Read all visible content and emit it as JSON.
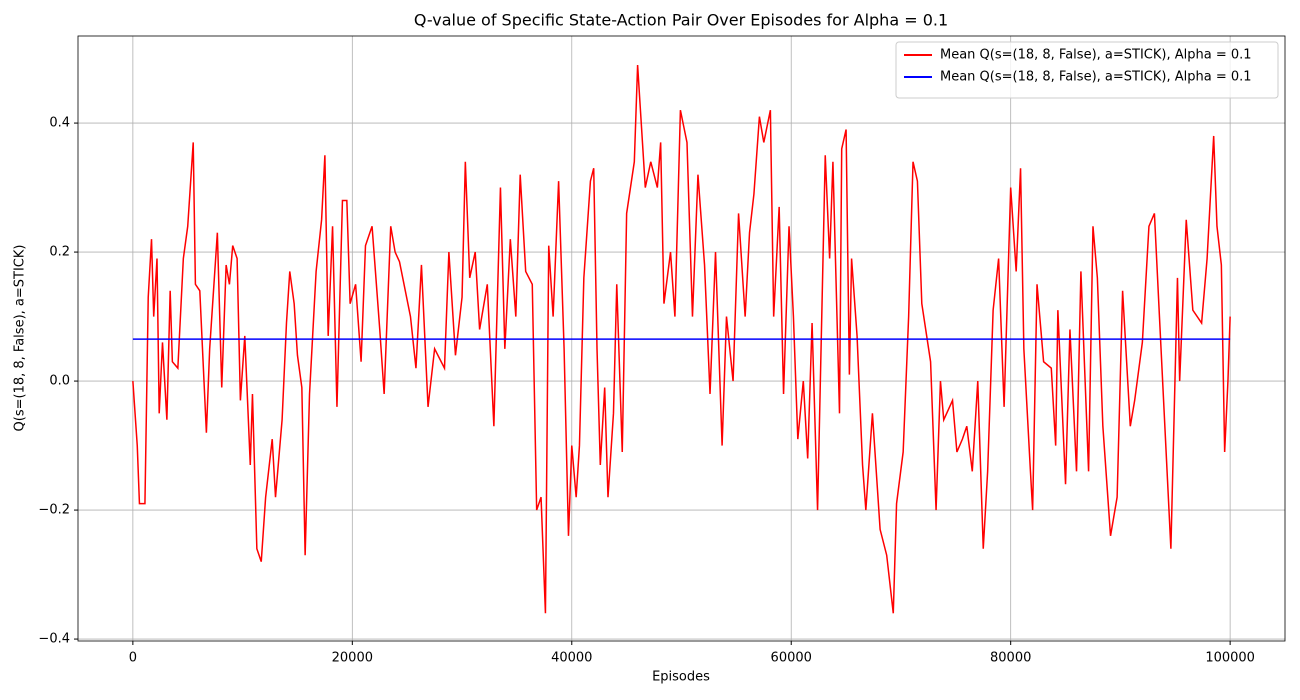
{
  "chart_data": {
    "type": "line",
    "title": "Q-value of Specific State-Action Pair Over Episodes for Alpha = 0.1",
    "x_label": "Episodes",
    "y_label": "Q(s=(18, 8, False), a=STICK)",
    "xlim": [
      -5000,
      105000
    ],
    "ylim": [
      -0.403,
      0.535
    ],
    "xticks": [
      0,
      20000,
      40000,
      60000,
      80000,
      100000
    ],
    "yticks": [
      {
        "value": -0.4,
        "label": "−0.4"
      },
      {
        "value": -0.2,
        "label": "−0.2"
      },
      {
        "value": 0,
        "label": "0.0"
      },
      0.2,
      0.4
    ],
    "grid": true,
    "legend": "upper right",
    "series": [
      {
        "name": "Mean Q(s=(18, 8, False), a=STICK), Alpha = 0.1",
        "color": "#ff0000",
        "x": [
          0,
          400,
          600,
          1100,
          1400,
          1700,
          1900,
          2200,
          2400,
          2700,
          3100,
          3400,
          3600,
          4100,
          4600,
          5000,
          5500,
          5700,
          6100,
          6400,
          6700,
          7000,
          7700,
          8100,
          8500,
          8800,
          9100,
          9500,
          9800,
          10200,
          10700,
          10900,
          11300,
          11700,
          12100,
          12700,
          13000,
          13600,
          14000,
          14300,
          14700,
          15000,
          15400,
          15700,
          16100,
          16700,
          17200,
          17500,
          17800,
          18200,
          18600,
          19100,
          19500,
          19800,
          20300,
          20800,
          21200,
          21800,
          22500,
          22900,
          23500,
          23900,
          24300,
          25300,
          25800,
          26300,
          26900,
          27500,
          28400,
          28800,
          29400,
          30000,
          30300,
          30700,
          31200,
          31600,
          32300,
          32900,
          33500,
          33900,
          34400,
          34900,
          35300,
          35800,
          36400,
          36800,
          37200,
          37600,
          37900,
          38300,
          38800,
          39300,
          39700,
          40000,
          40400,
          40700,
          41100,
          41700,
          42000,
          42300,
          42600,
          43000,
          43300,
          43800,
          44100,
          44600,
          45000,
          45700,
          46000,
          46700,
          47200,
          47800,
          48100,
          48400,
          49000,
          49400,
          49900,
          50500,
          51000,
          51500,
          52100,
          52600,
          53100,
          53700,
          54100,
          54700,
          55200,
          55800,
          56200,
          56600,
          57100,
          57500,
          58100,
          58400,
          58900,
          59300,
          59800,
          60200,
          60600,
          61100,
          61500,
          61900,
          62400,
          63100,
          63500,
          63800,
          64400,
          64600,
          65000,
          65300,
          65500,
          66000,
          66500,
          66800,
          67400,
          68100,
          68700,
          69300,
          69600,
          70200,
          70700,
          71100,
          71500,
          71900,
          72700,
          73200,
          73600,
          73900,
          74700,
          75100,
          75600,
          76000,
          76500,
          77000,
          77500,
          77900,
          78400,
          78900,
          79400,
          80000,
          80500,
          80900,
          81200,
          81800,
          82000,
          82400,
          83000,
          83700,
          84100,
          84300,
          85000,
          85400,
          86000,
          86400,
          87100,
          87500,
          87900,
          88400,
          89100,
          89700,
          90200,
          90900,
          91300,
          92000,
          92600,
          93100,
          93500,
          94600,
          95200,
          95400,
          96000,
          96600,
          97400,
          97900,
          98500,
          98800,
          99200,
          99500,
          99800,
          100000
        ],
        "values": [
          0.0,
          -0.1,
          -0.19,
          -0.19,
          0.13,
          0.22,
          0.1,
          0.19,
          -0.05,
          0.06,
          -0.06,
          0.14,
          0.03,
          0.02,
          0.19,
          0.24,
          0.37,
          0.15,
          0.14,
          0.03,
          -0.08,
          0.05,
          0.23,
          -0.01,
          0.18,
          0.15,
          0.21,
          0.19,
          -0.03,
          0.07,
          -0.13,
          -0.02,
          -0.26,
          -0.28,
          -0.18,
          -0.09,
          -0.18,
          -0.06,
          0.09,
          0.17,
          0.12,
          0.04,
          -0.01,
          -0.27,
          -0.02,
          0.17,
          0.25,
          0.35,
          0.07,
          0.24,
          -0.04,
          0.28,
          0.28,
          0.12,
          0.15,
          0.03,
          0.21,
          0.24,
          0.08,
          -0.02,
          0.24,
          0.2,
          0.185,
          0.1,
          0.02,
          0.18,
          -0.04,
          0.05,
          0.02,
          0.2,
          0.04,
          0.13,
          0.34,
          0.16,
          0.2,
          0.08,
          0.15,
          -0.07,
          0.3,
          0.05,
          0.22,
          0.1,
          0.32,
          0.17,
          0.15,
          -0.2,
          -0.18,
          -0.36,
          0.21,
          0.1,
          0.31,
          0.05,
          -0.24,
          -0.1,
          -0.18,
          -0.1,
          0.16,
          0.31,
          0.33,
          0.05,
          -0.13,
          -0.01,
          -0.18,
          -0.05,
          0.15,
          -0.11,
          0.26,
          0.34,
          0.49,
          0.3,
          0.34,
          0.3,
          0.37,
          0.12,
          0.2,
          0.1,
          0.42,
          0.37,
          0.1,
          0.32,
          0.18,
          -0.02,
          0.2,
          -0.1,
          0.1,
          0.0,
          0.26,
          0.1,
          0.23,
          0.29,
          0.41,
          0.37,
          0.42,
          0.1,
          0.27,
          -0.02,
          0.24,
          0.1,
          -0.09,
          0.0,
          -0.12,
          0.09,
          -0.2,
          0.35,
          0.19,
          0.34,
          -0.05,
          0.36,
          0.39,
          0.01,
          0.19,
          0.07,
          -0.13,
          -0.2,
          -0.05,
          -0.23,
          -0.27,
          -0.36,
          -0.19,
          -0.11,
          0.1,
          0.34,
          0.31,
          0.12,
          0.03,
          -0.2,
          0.0,
          -0.06,
          -0.03,
          -0.11,
          -0.09,
          -0.07,
          -0.14,
          0.0,
          -0.26,
          -0.14,
          0.11,
          0.19,
          -0.04,
          0.3,
          0.17,
          0.33,
          0.05,
          -0.14,
          -0.2,
          0.15,
          0.03,
          0.02,
          -0.1,
          0.11,
          -0.16,
          0.08,
          -0.14,
          0.17,
          -0.14,
          0.24,
          0.16,
          -0.07,
          -0.24,
          -0.18,
          0.14,
          -0.07,
          -0.03,
          0.06,
          0.24,
          0.26,
          0.12,
          -0.26,
          0.16,
          0.0,
          0.25,
          0.11,
          0.09,
          0.19,
          0.38,
          0.24,
          0.18,
          -0.11,
          0.0,
          0.1
        ]
      },
      {
        "name": "Mean Q(s=(18, 8, False), a=STICK), Alpha = 0.1",
        "color": "#0000ff",
        "x": [
          0,
          100000
        ],
        "values": [
          0.065,
          0.065
        ]
      }
    ]
  }
}
